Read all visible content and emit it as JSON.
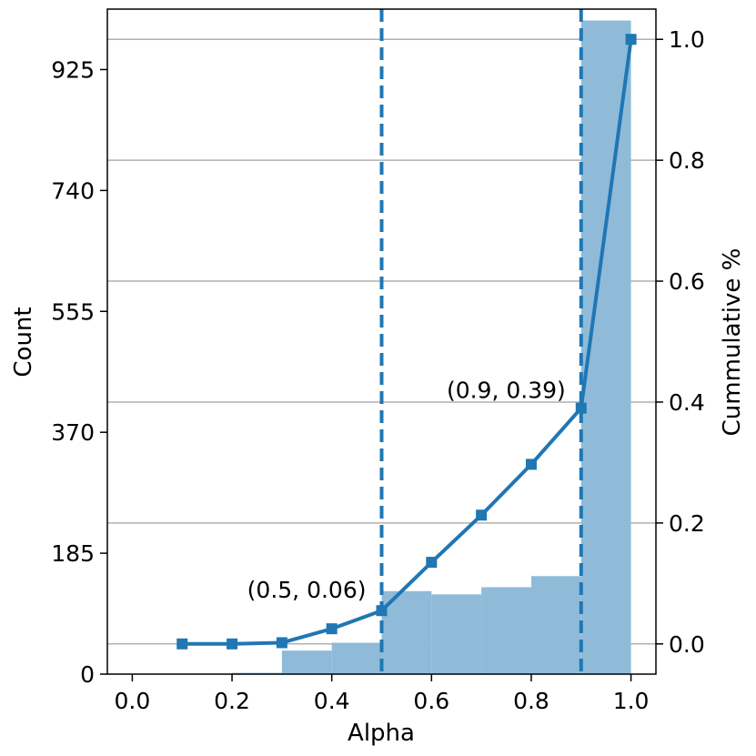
{
  "chart_data": {
    "type": "bar+line",
    "xlabel": "Alpha",
    "ylabel_left": "Count",
    "ylabel_right": "Cummulative %",
    "x_ticks": [
      "0.0",
      "0.2",
      "0.4",
      "0.6",
      "0.8",
      "1.0"
    ],
    "xlim": [
      -0.05,
      1.05
    ],
    "left_ticks": [
      "0",
      "185",
      "370",
      "555",
      "740",
      "925"
    ],
    "ylim_left": [
      0,
      1017.5
    ],
    "right_ticks": [
      "0.0",
      "0.2",
      "0.4",
      "0.6",
      "0.8",
      "1.0"
    ],
    "ylim_right": [
      -0.05,
      1.05
    ],
    "grid": "horizontal, on right axis ticks",
    "histogram": {
      "color": "#8fbbd9",
      "bins": [
        {
          "from": 0.2,
          "to": 0.3,
          "count": 2
        },
        {
          "from": 0.3,
          "to": 0.4,
          "count": 36
        },
        {
          "from": 0.4,
          "to": 0.5,
          "count": 48
        },
        {
          "from": 0.5,
          "to": 0.6,
          "count": 127
        },
        {
          "from": 0.6,
          "to": 0.7,
          "count": 122
        },
        {
          "from": 0.7,
          "to": 0.8,
          "count": 133
        },
        {
          "from": 0.8,
          "to": 0.9,
          "count": 150
        },
        {
          "from": 0.9,
          "to": 1.0,
          "count": 1000
        }
      ]
    },
    "cumulative": {
      "color": "#1f77b4",
      "x": [
        0.1,
        0.2,
        0.3,
        0.4,
        0.5,
        0.6,
        0.7,
        0.8,
        0.9,
        1.0
      ],
      "y": [
        0.0,
        0.0,
        0.002,
        0.025,
        0.055,
        0.135,
        0.213,
        0.297,
        0.39,
        1.0
      ]
    },
    "vlines": [
      {
        "x": 0.5,
        "style": "dashed",
        "color": "#1f77b4"
      },
      {
        "x": 0.9,
        "style": "dashed",
        "color": "#1f77b4"
      }
    ],
    "annotations": [
      {
        "text": "(0.5, 0.06)",
        "x": 0.5,
        "y": 0.06
      },
      {
        "text": "(0.9, 0.39)",
        "x": 0.9,
        "y": 0.39
      }
    ]
  }
}
